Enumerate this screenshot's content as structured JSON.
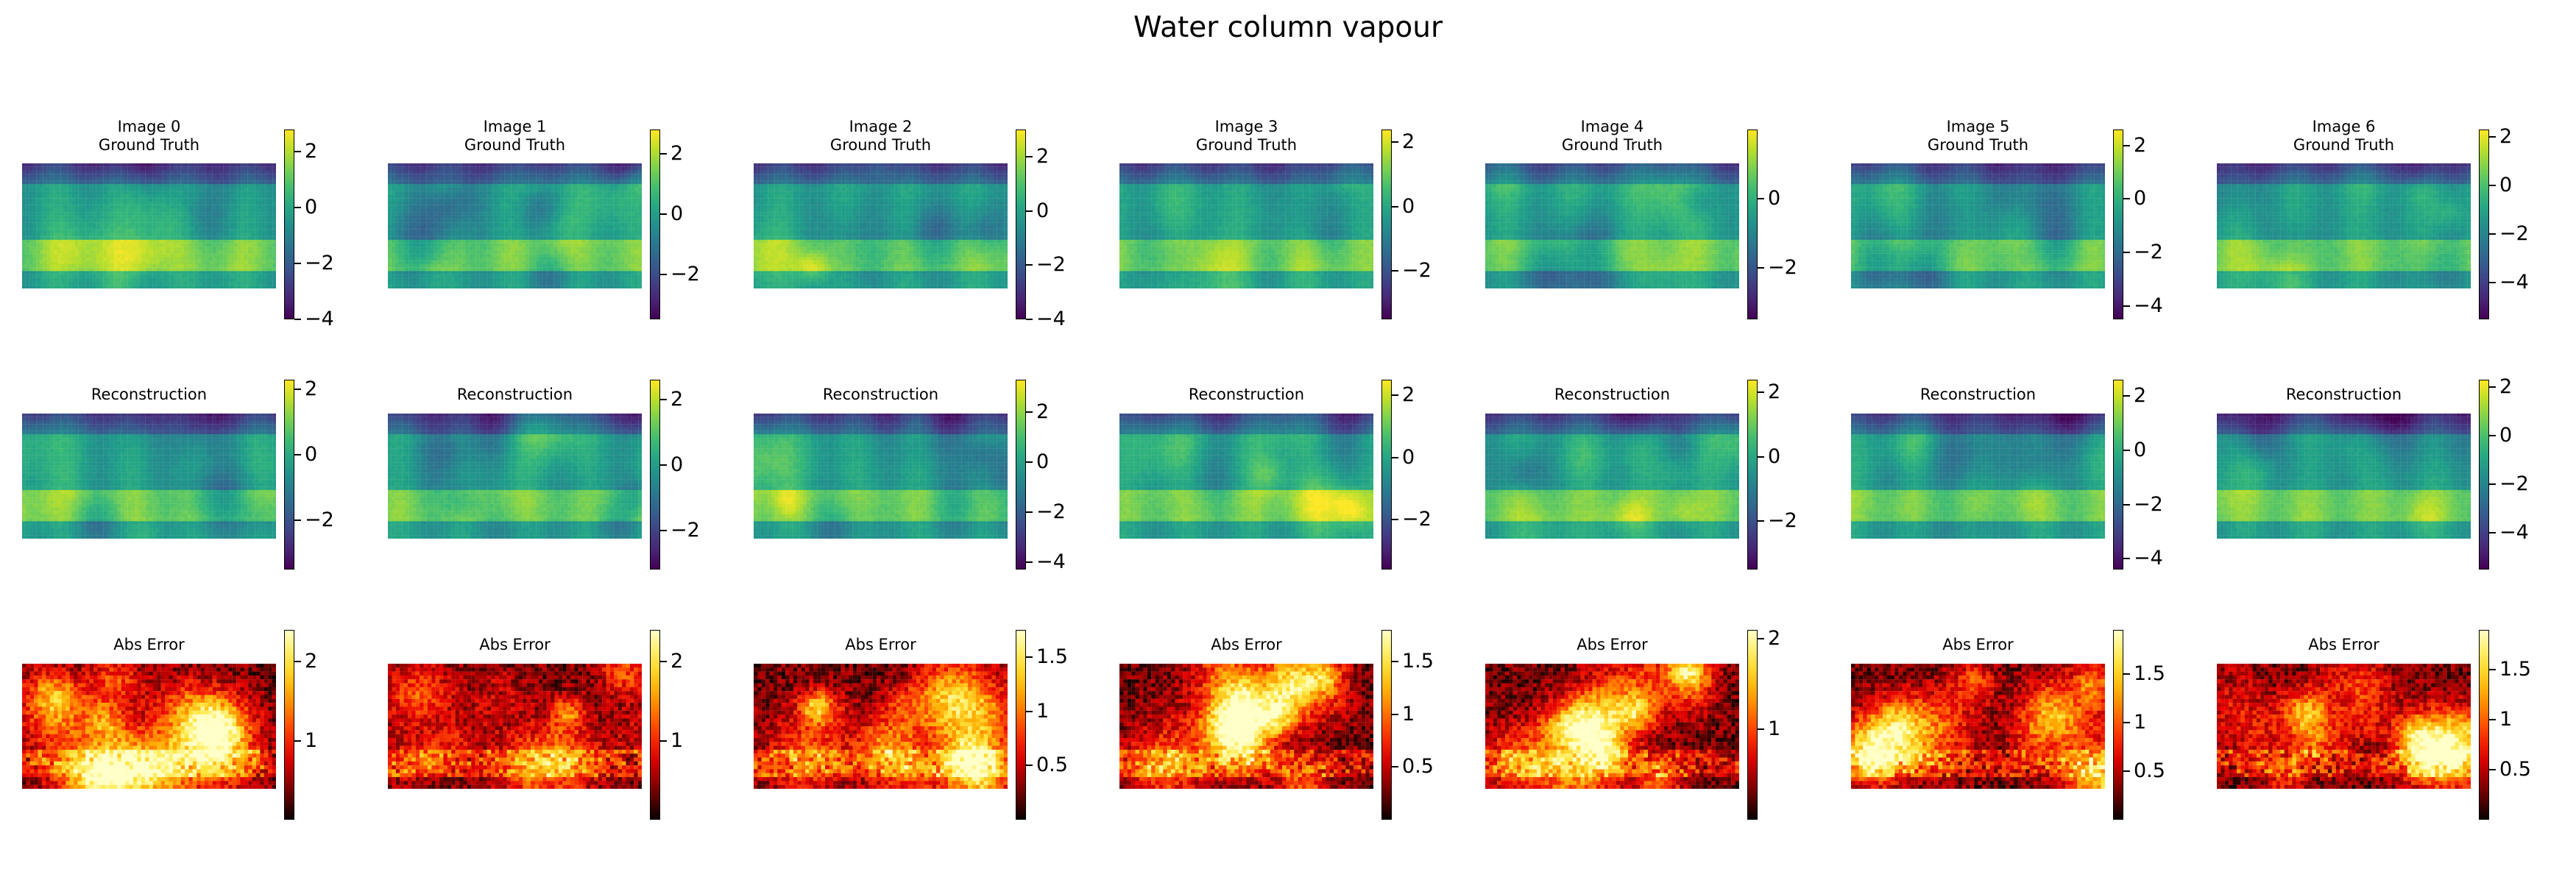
{
  "figure": {
    "title": "Water column vapour"
  },
  "colors": {
    "viridis": "viridis colormap",
    "hot": "hot colormap"
  },
  "chart_data": [
    {
      "type": "heatmap",
      "row": "ground_truth",
      "column": 0,
      "title": "Image 0\nGround Truth",
      "colormap": "viridis",
      "clim": [
        -4.0,
        2.8
      ],
      "colorbar_ticks": [
        2,
        0,
        -2,
        -4
      ]
    },
    {
      "type": "heatmap",
      "row": "ground_truth",
      "column": 1,
      "title": "Image 1\nGround Truth",
      "colormap": "viridis",
      "clim": [
        -3.5,
        2.8
      ],
      "colorbar_ticks": [
        2,
        0,
        -2
      ]
    },
    {
      "type": "heatmap",
      "row": "ground_truth",
      "column": 2,
      "title": "Image 2\nGround Truth",
      "colormap": "viridis",
      "clim": [
        -4.0,
        3.0
      ],
      "colorbar_ticks": [
        2,
        0,
        -2,
        -4
      ]
    },
    {
      "type": "heatmap",
      "row": "ground_truth",
      "column": 3,
      "title": "Image 3\nGround Truth",
      "colormap": "viridis",
      "clim": [
        -3.5,
        2.4
      ],
      "colorbar_ticks": [
        2,
        0,
        -2
      ]
    },
    {
      "type": "heatmap",
      "row": "ground_truth",
      "column": 4,
      "title": "Image 4\nGround Truth",
      "colormap": "viridis",
      "clim": [
        -3.5,
        2.0
      ],
      "colorbar_ticks": [
        0,
        -2
      ]
    },
    {
      "type": "heatmap",
      "row": "ground_truth",
      "column": 5,
      "title": "Image 5\nGround Truth",
      "colormap": "viridis",
      "clim": [
        -4.5,
        2.6
      ],
      "colorbar_ticks": [
        2,
        0,
        -2,
        -4
      ]
    },
    {
      "type": "heatmap",
      "row": "ground_truth",
      "column": 6,
      "title": "Image 6\nGround Truth",
      "colormap": "viridis",
      "clim": [
        -5.5,
        2.3
      ],
      "colorbar_ticks": [
        2,
        0,
        -2,
        -4
      ]
    },
    {
      "type": "heatmap",
      "row": "reconstruction",
      "column": 0,
      "title": "Reconstruction",
      "colormap": "viridis",
      "clim": [
        -3.5,
        2.3
      ],
      "colorbar_ticks": [
        2,
        0,
        -2
      ]
    },
    {
      "type": "heatmap",
      "row": "reconstruction",
      "column": 1,
      "title": "Reconstruction",
      "colormap": "viridis",
      "clim": [
        -3.2,
        2.6
      ],
      "colorbar_ticks": [
        2,
        0,
        -2
      ]
    },
    {
      "type": "heatmap",
      "row": "reconstruction",
      "column": 2,
      "title": "Reconstruction",
      "colormap": "viridis",
      "clim": [
        -4.3,
        3.3
      ],
      "colorbar_ticks": [
        2,
        0,
        -2,
        -4
      ]
    },
    {
      "type": "heatmap",
      "row": "reconstruction",
      "column": 3,
      "title": "Reconstruction",
      "colormap": "viridis",
      "clim": [
        -3.6,
        2.5
      ],
      "colorbar_ticks": [
        2,
        0,
        -2
      ]
    },
    {
      "type": "heatmap",
      "row": "reconstruction",
      "column": 4,
      "title": "Reconstruction",
      "colormap": "viridis",
      "clim": [
        -3.5,
        2.4
      ],
      "colorbar_ticks": [
        2,
        0,
        -2
      ]
    },
    {
      "type": "heatmap",
      "row": "reconstruction",
      "column": 5,
      "title": "Reconstruction",
      "colormap": "viridis",
      "clim": [
        -4.4,
        2.6
      ],
      "colorbar_ticks": [
        2,
        0,
        -2,
        -4
      ]
    },
    {
      "type": "heatmap",
      "row": "reconstruction",
      "column": 6,
      "title": "Reconstruction",
      "colormap": "viridis",
      "clim": [
        -5.5,
        2.3
      ],
      "colorbar_ticks": [
        2,
        0,
        -2,
        -4
      ]
    },
    {
      "type": "heatmap",
      "row": "abs_error",
      "column": 0,
      "title": "Abs Error",
      "colormap": "hot",
      "clim": [
        0.0,
        2.4
      ],
      "colorbar_ticks": [
        2,
        1
      ]
    },
    {
      "type": "heatmap",
      "row": "abs_error",
      "column": 1,
      "title": "Abs Error",
      "colormap": "hot",
      "clim": [
        0.0,
        2.4
      ],
      "colorbar_ticks": [
        2,
        1
      ]
    },
    {
      "type": "heatmap",
      "row": "abs_error",
      "column": 2,
      "title": "Abs Error",
      "colormap": "hot",
      "clim": [
        0.0,
        1.75
      ],
      "colorbar_ticks": [
        1.5,
        1.0,
        0.5
      ]
    },
    {
      "type": "heatmap",
      "row": "abs_error",
      "column": 3,
      "title": "Abs Error",
      "colormap": "hot",
      "clim": [
        0.0,
        1.8
      ],
      "colorbar_ticks": [
        1.5,
        1.0,
        0.5
      ]
    },
    {
      "type": "heatmap",
      "row": "abs_error",
      "column": 4,
      "title": "Abs Error",
      "colormap": "hot",
      "clim": [
        0.0,
        2.1
      ],
      "colorbar_ticks": [
        2,
        1
      ]
    },
    {
      "type": "heatmap",
      "row": "abs_error",
      "column": 5,
      "title": "Abs Error",
      "colormap": "hot",
      "clim": [
        0.0,
        1.95
      ],
      "colorbar_ticks": [
        1.5,
        1.0,
        0.5
      ]
    },
    {
      "type": "heatmap",
      "row": "abs_error",
      "column": 6,
      "title": "Abs Error",
      "colormap": "hot",
      "clim": [
        0.0,
        1.9
      ],
      "colorbar_ticks": [
        1.5,
        1.0,
        0.5
      ]
    }
  ]
}
